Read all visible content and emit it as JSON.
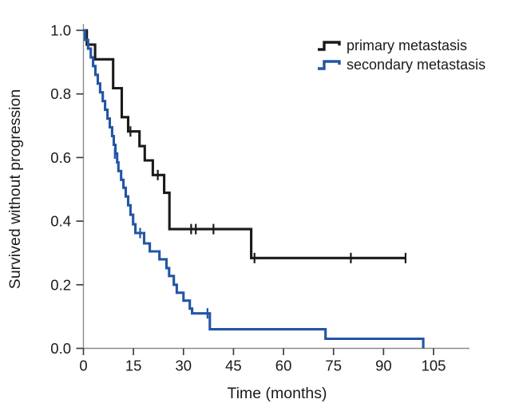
{
  "figure": {
    "background": "#ffffff",
    "description": "Kaplan-Meier curve of progression-free survival"
  },
  "chart_data": {
    "type": "line",
    "subtype": "kaplan-meier-step",
    "title": "",
    "xlabel": "Time (months)",
    "ylabel": "Survived without progression",
    "xlim": [
      0,
      116
    ],
    "ylim": [
      0,
      1.0
    ],
    "xticks": [
      0,
      15,
      30,
      45,
      60,
      75,
      90,
      105
    ],
    "yticks": [
      0.0,
      0.2,
      0.4,
      0.6,
      0.8,
      1.0
    ],
    "ytick_decimals": 1,
    "grid": false,
    "legend_position": "top-right",
    "axis_color": "#8c8c8c",
    "tick_color": "#3f3f3f",
    "text_color": "#1a1a1a",
    "tick_font_px": 18.5,
    "series": [
      {
        "name": "primary metastasis",
        "color": "#1a1a1a",
        "line_width": 3.1,
        "points": [
          [
            0,
            1.0
          ],
          [
            1.0,
            0.955
          ],
          [
            3.5,
            0.909
          ],
          [
            8.9,
            0.818
          ],
          [
            11.5,
            0.727
          ],
          [
            13.4,
            0.682
          ],
          [
            16.8,
            0.636
          ],
          [
            18.4,
            0.591
          ],
          [
            20.8,
            0.545
          ],
          [
            24.2,
            0.489
          ],
          [
            25.8,
            0.375
          ],
          [
            50.3,
            0.284
          ],
          [
            96.6,
            0.284
          ]
        ],
        "censors": [
          [
            14.1,
            0.682
          ],
          [
            22.3,
            0.545
          ],
          [
            32.3,
            0.375
          ],
          [
            33.7,
            0.375
          ],
          [
            39.0,
            0.375
          ],
          [
            51.3,
            0.284
          ],
          [
            80.2,
            0.284
          ],
          [
            96.6,
            0.284
          ]
        ]
      },
      {
        "name": "secondary metastasis",
        "color": "#2355a4",
        "line_width": 3.1,
        "points": [
          [
            0,
            1.0
          ],
          [
            0.5,
            0.97
          ],
          [
            1.4,
            0.9425
          ],
          [
            2.2,
            0.915
          ],
          [
            2.9,
            0.8875
          ],
          [
            3.6,
            0.86
          ],
          [
            4.3,
            0.8325
          ],
          [
            5.0,
            0.805
          ],
          [
            5.8,
            0.7775
          ],
          [
            6.5,
            0.75
          ],
          [
            7.2,
            0.7225
          ],
          [
            7.9,
            0.695
          ],
          [
            8.6,
            0.6675
          ],
          [
            9.1,
            0.64
          ],
          [
            9.6,
            0.6125
          ],
          [
            10.1,
            0.585
          ],
          [
            10.5,
            0.5575
          ],
          [
            11.3,
            0.53
          ],
          [
            12.0,
            0.505
          ],
          [
            12.7,
            0.4775
          ],
          [
            13.4,
            0.45
          ],
          [
            14.1,
            0.42
          ],
          [
            14.9,
            0.39
          ],
          [
            15.6,
            0.3625
          ],
          [
            18.2,
            0.33
          ],
          [
            19.9,
            0.305
          ],
          [
            22.8,
            0.28
          ],
          [
            24.9,
            0.2525
          ],
          [
            25.7,
            0.2275
          ],
          [
            27.1,
            0.2
          ],
          [
            28.0,
            0.175
          ],
          [
            30.0,
            0.15
          ],
          [
            31.9,
            0.125
          ],
          [
            32.6,
            0.11
          ],
          [
            37.9,
            0.06
          ],
          [
            72.6,
            0.03
          ],
          [
            101.9,
            0.0
          ]
        ],
        "censors": [
          [
            9.4,
            0.6125
          ],
          [
            17.0,
            0.3625
          ],
          [
            37.2,
            0.11
          ]
        ]
      }
    ]
  }
}
